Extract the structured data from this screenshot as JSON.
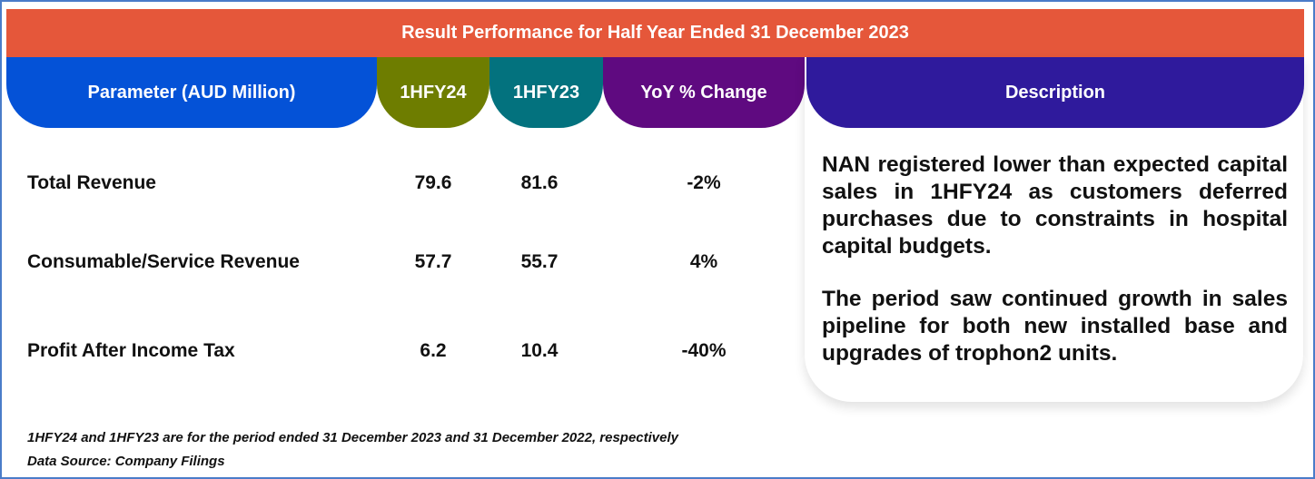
{
  "title": "Result Performance for Half Year Ended 31 December 2023",
  "columns": {
    "parameter": "Parameter (AUD Million)",
    "y24": "1HFY24",
    "y23": "1HFY23",
    "yoy": "YoY % Change",
    "description": "Description"
  },
  "rows": [
    {
      "label": "Total Revenue",
      "y24": "79.6",
      "y23": "81.6",
      "yoy": "-2%"
    },
    {
      "label": "Consumable/Service Revenue",
      "y24": "57.7",
      "y23": "55.7",
      "yoy": "4%"
    },
    {
      "label": "Profit After Income Tax",
      "y24": "6.2",
      "y23": "10.4",
      "yoy": "-40%"
    }
  ],
  "description": {
    "paragraph1": "NAN registered lower than expected capital sales in 1HFY24 as customers deferred purchases due to constraints in hospital capital budgets.",
    "paragraph2": "The period saw continued growth in sales pipeline for both new installed base and upgrades of trophon2 units."
  },
  "footnotes": {
    "period_note": "1HFY24 and 1HFY23 are for the period ended 31 December  2023 and 31 December 2022, respectively",
    "source": "Data Source: Company Filings"
  },
  "colors": {
    "banner": "#e5573a",
    "parameter": "#0452d7",
    "y24": "#6e7d00",
    "y23": "#03727e",
    "yoy": "#5f0a80",
    "description": "#2f1a9c"
  }
}
